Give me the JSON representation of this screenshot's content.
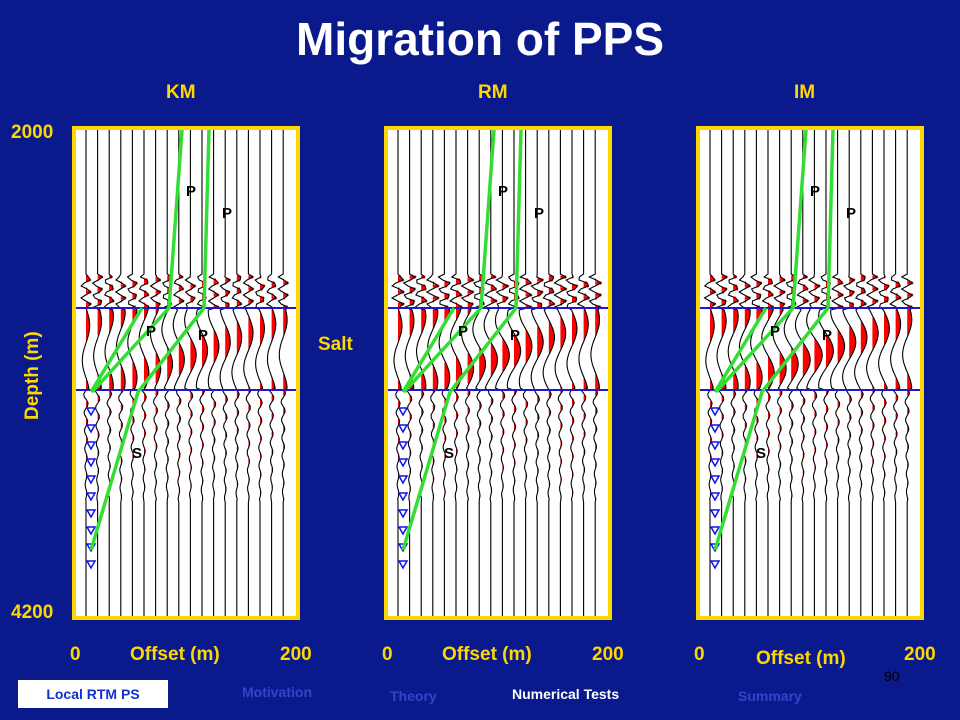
{
  "title": "Migration of PPS",
  "panels": [
    {
      "label": "KM",
      "offset_label": "Offset (m)",
      "x_min": "0",
      "x_max": "200"
    },
    {
      "label": "RM",
      "offset_label": "Offset (m)",
      "x_min": "0",
      "x_max": "200"
    },
    {
      "label": "IM",
      "offset_label": "Offset (m)",
      "x_min": "0",
      "x_max": "200"
    }
  ],
  "depth": {
    "top": "2000",
    "bottom": "4200",
    "axis_label": "Depth (m)"
  },
  "salt_label": "Salt",
  "wave_labels": {
    "p": "P",
    "s": "S"
  },
  "page_number": "90",
  "nav": {
    "current": "Local RTM PS",
    "items": [
      "Motivation",
      "Theory",
      "Numerical Tests",
      "Summary"
    ]
  },
  "colors": {
    "background": "#0a1a8c",
    "frame": "#ffd700",
    "ray": "#33dd33",
    "salt_boundary": "#1a1ad0",
    "wiggle_fill": "#ff0000"
  }
}
